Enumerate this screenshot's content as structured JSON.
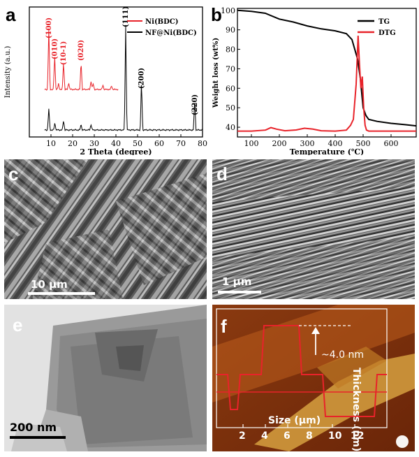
{
  "panels": {
    "a": {
      "label": "a",
      "scale": ""
    },
    "b": {
      "label": "b",
      "scale": ""
    },
    "c": {
      "label": "c",
      "scale": "10 μm"
    },
    "d": {
      "label": "d",
      "scale": "1 μm"
    },
    "e": {
      "label": "e",
      "scale": "200 nm"
    },
    "f": {
      "label": "f",
      "scale": ""
    }
  },
  "afm": {
    "step": "~4.0 nm",
    "xlabel": "Size (μm)",
    "ylabel": "Thickness (nm)",
    "xticks": [
      "2",
      "4",
      "6",
      "8",
      "10",
      "12"
    ]
  },
  "chart_data": [
    {
      "type": "line",
      "panel": "a",
      "xlabel": "2 Theta (degree)",
      "ylabel": "Intensity (a.u.)",
      "xlim": [
        0,
        80
      ],
      "xticks": [
        10,
        20,
        30,
        40,
        50,
        60,
        70,
        80
      ],
      "legend": "top-right",
      "series": [
        {
          "name": "Ni(BDC)",
          "color": "#e8232a",
          "peaks": [
            [
              9.0,
              "(100)"
            ],
            [
              11.7,
              "(010)"
            ],
            [
              15.8,
              "(10-1)"
            ],
            [
              23.9,
              "(020)"
            ]
          ]
        },
        {
          "name": "NF@Ni(BDC)",
          "color": "#000000",
          "peaks": [
            [
              44.5,
              "(111)"
            ],
            [
              51.8,
              "(200)"
            ],
            [
              76.4,
              "(220)"
            ]
          ]
        }
      ]
    },
    {
      "type": "line",
      "panel": "b",
      "xlabel": "Temperature (℃)",
      "ylabel": "Weight loss (wt%)",
      "xlim": [
        50,
        690
      ],
      "ylim": [
        35,
        101
      ],
      "xticks": [
        100,
        200,
        300,
        400,
        500,
        600
      ],
      "yticks": [
        40,
        50,
        60,
        70,
        80,
        90,
        100
      ],
      "legend": "top-right",
      "series": [
        {
          "name": "TG",
          "color": "#000000",
          "x": [
            50,
            100,
            150,
            200,
            250,
            300,
            350,
            400,
            440,
            460,
            480,
            490,
            500,
            510,
            520,
            550,
            600,
            650,
            690
          ],
          "y": [
            100,
            99.5,
            98.5,
            95.5,
            94,
            92,
            90.5,
            89.5,
            88,
            85,
            75,
            65,
            50,
            46,
            44,
            43,
            42,
            41.3,
            40.7
          ]
        },
        {
          "name": "DTG",
          "color": "#e8232a",
          "x": [
            50,
            100,
            150,
            170,
            190,
            220,
            260,
            290,
            320,
            350,
            400,
            440,
            455,
            465,
            475,
            482,
            487,
            492,
            497,
            502,
            507,
            512,
            520,
            540,
            600,
            690
          ],
          "y": [
            38,
            38,
            38.5,
            39.8,
            39,
            38.2,
            38.6,
            39.5,
            39,
            38.2,
            38,
            38.5,
            41,
            44,
            62,
            87,
            72,
            60,
            66,
            50,
            41,
            38.5,
            38,
            38,
            38,
            38
          ]
        }
      ]
    }
  ]
}
